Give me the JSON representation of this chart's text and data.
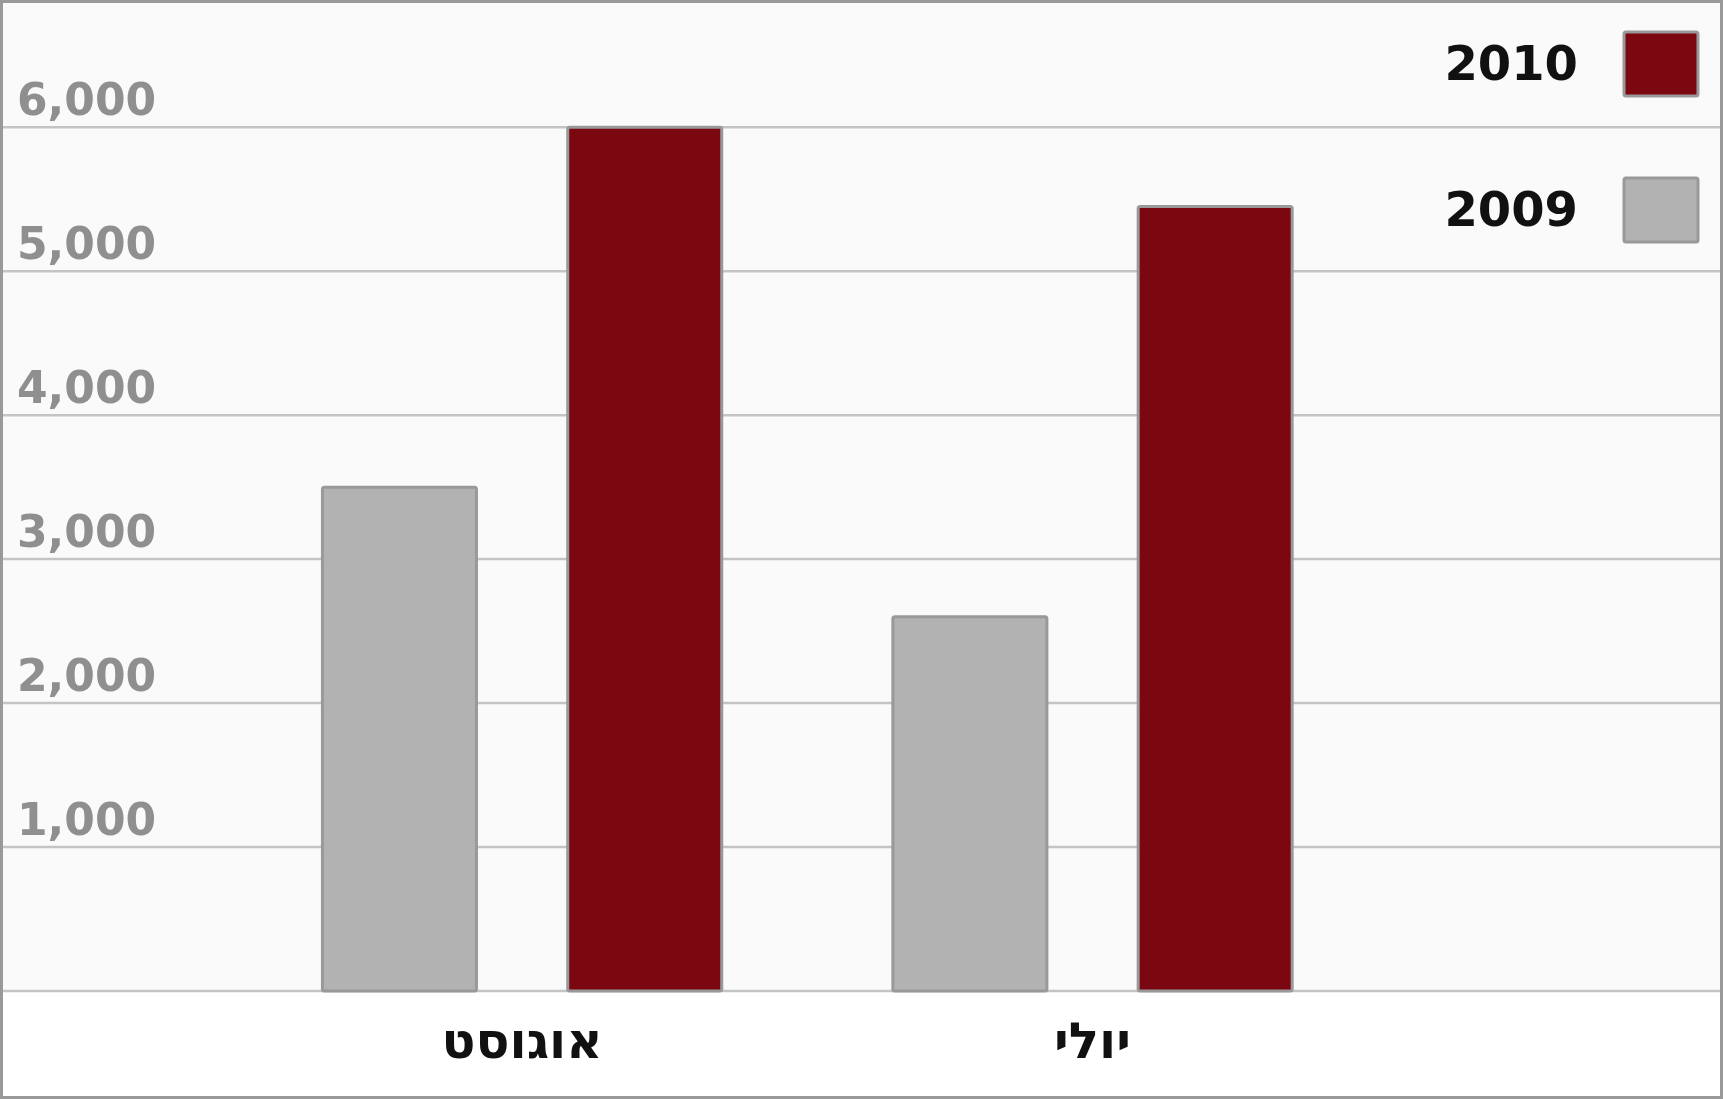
{
  "chart_data": {
    "type": "bar",
    "categories": [
      "אוגוסט",
      "יולי"
    ],
    "series": [
      {
        "name": "2009",
        "color": "#b3b2b3",
        "values": [
          3500,
          2600
        ]
      },
      {
        "name": "2010",
        "color": "#7b0711",
        "values": [
          6000,
          5450
        ]
      }
    ],
    "ylim": [
      0,
      6870
    ],
    "yticks": [
      {
        "value": 0,
        "label": null
      },
      {
        "value": 1000,
        "label": "1,000"
      },
      {
        "value": 2000,
        "label": "2,000"
      },
      {
        "value": 3000,
        "label": "3,000"
      },
      {
        "value": 4000,
        "label": "4,000"
      },
      {
        "value": 5000,
        "label": "5,000"
      },
      {
        "value": 6000,
        "label": "6,000"
      }
    ],
    "grid": "y",
    "legend": "top right"
  }
}
